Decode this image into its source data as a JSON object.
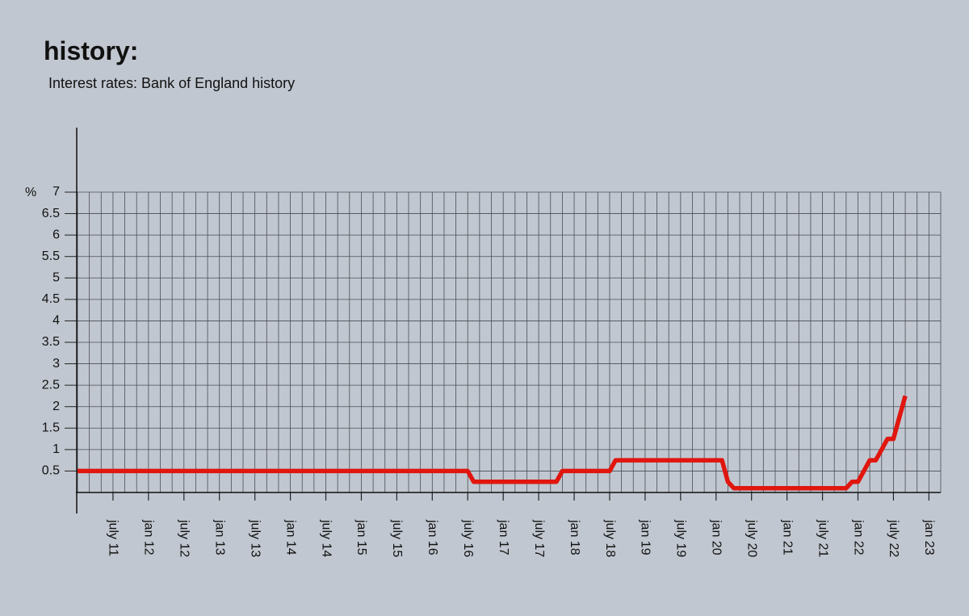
{
  "chart_data": {
    "type": "line",
    "title": "history:",
    "subtitle": "Interest rates: Bank of England history",
    "y_unit": "%",
    "x": [
      "2011-01",
      "2016-07",
      "2016-08",
      "2017-10",
      "2017-11",
      "2018-07",
      "2018-08",
      "2020-02",
      "2020-03",
      "2020-04",
      "2021-11",
      "2021-12",
      "2022-01",
      "2022-02",
      "2022-03",
      "2022-04",
      "2022-05",
      "2022-06",
      "2022-07",
      "2022-08",
      "2022-09"
    ],
    "series": [
      {
        "color": "#e0160f",
        "values": [
          0.5,
          0.5,
          0.25,
          0.25,
          0.5,
          0.5,
          0.75,
          0.75,
          0.25,
          0.1,
          0.1,
          0.25,
          0.25,
          0.5,
          0.75,
          0.75,
          1,
          1.25,
          1.25,
          1.75,
          2.25
        ]
      }
    ],
    "xlim": [
      "2011-01",
      "2023-03"
    ],
    "xticks": [
      {
        "value": "2011-07",
        "label": "july 11"
      },
      {
        "value": "2012-01",
        "label": "jan 12"
      },
      {
        "value": "2012-07",
        "label": "july 12"
      },
      {
        "value": "2013-01",
        "label": "jan 13"
      },
      {
        "value": "2013-07",
        "label": "july 13"
      },
      {
        "value": "2014-01",
        "label": "jan 14"
      },
      {
        "value": "2014-07",
        "label": "july 14"
      },
      {
        "value": "2015-01",
        "label": "jan 15"
      },
      {
        "value": "2015-07",
        "label": "july 15"
      },
      {
        "value": "2016-01",
        "label": "jan 16"
      },
      {
        "value": "2016-07",
        "label": "july 16"
      },
      {
        "value": "2017-01",
        "label": "jan 17"
      },
      {
        "value": "2017-07",
        "label": "july 17"
      },
      {
        "value": "2018-01",
        "label": "jan 18"
      },
      {
        "value": "2018-07",
        "label": "july 18"
      },
      {
        "value": "2019-01",
        "label": "jan 19"
      },
      {
        "value": "2019-07",
        "label": "july 19"
      },
      {
        "value": "2020-01",
        "label": "jan 20"
      },
      {
        "value": "2020-07",
        "label": "july 20"
      },
      {
        "value": "2021-01",
        "label": "jan 21"
      },
      {
        "value": "2021-07",
        "label": "july 21"
      },
      {
        "value": "2022-01",
        "label": "jan 22"
      },
      {
        "value": "2022-07",
        "label": "july 22"
      },
      {
        "value": "2023-01",
        "label": "jan 23"
      }
    ],
    "ylim": [
      0,
      7
    ],
    "yticks": [
      0.5,
      1,
      1.5,
      2,
      2.5,
      3,
      3.5,
      4,
      4.5,
      5,
      5.5,
      6,
      6.5,
      7
    ],
    "grid": true
  }
}
